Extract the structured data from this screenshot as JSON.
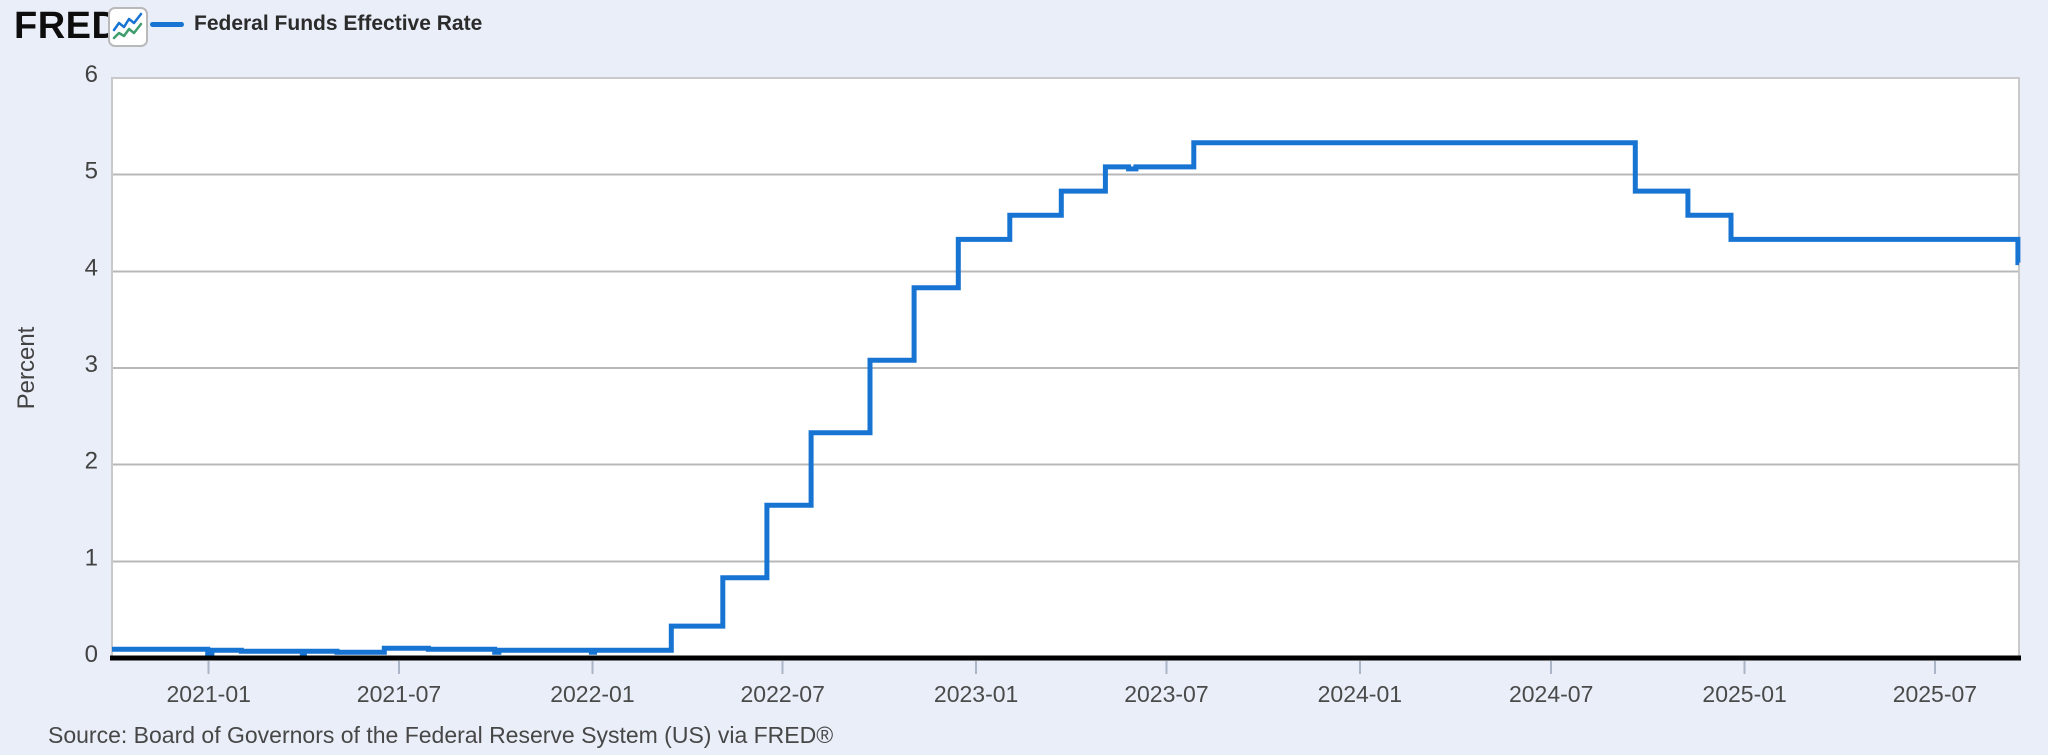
{
  "header": {
    "logo_text": "FRED",
    "logo_registered": "®",
    "logo_icon": "fred-sparkline-icon",
    "legend": {
      "label": "Federal Funds Effective Rate",
      "swatch_color": "#1874d2"
    }
  },
  "colors": {
    "background": "#e9eef8",
    "plot_background": "#ffffff",
    "grid": "#b8b8b8",
    "plot_border": "#c9c9c9",
    "axis_line": "#000000",
    "tick": "#aab6c8",
    "label_text": "#424242",
    "x_label_text": "#4a4a4a",
    "line": "#1874d2",
    "icon_blue": "#1874d2",
    "icon_green": "#3e9e6e"
  },
  "chart_data": {
    "type": "line",
    "line_style": "step-after",
    "title": "Federal Funds Effective Rate",
    "xlabel": "",
    "ylabel": "Percent",
    "ylim": [
      0,
      6
    ],
    "y_ticks": [
      0,
      1,
      2,
      3,
      4,
      5,
      6
    ],
    "grid": true,
    "legend_position": "top-left",
    "x_domain": [
      "2020-10-01",
      "2025-09-19"
    ],
    "x_ticks": [
      {
        "label": "2021-01",
        "date": "2021-01-01"
      },
      {
        "label": "2021-07",
        "date": "2021-07-01"
      },
      {
        "label": "2022-01",
        "date": "2022-01-01"
      },
      {
        "label": "2022-07",
        "date": "2022-07-01"
      },
      {
        "label": "2023-01",
        "date": "2023-01-01"
      },
      {
        "label": "2023-07",
        "date": "2023-07-01"
      },
      {
        "label": "2024-01",
        "date": "2024-01-01"
      },
      {
        "label": "2024-07",
        "date": "2024-07-01"
      },
      {
        "label": "2025-01",
        "date": "2025-01-01"
      },
      {
        "label": "2025-07",
        "date": "2025-07-01"
      }
    ],
    "series": [
      {
        "name": "Federal Funds Effective Rate",
        "color": "#1874d2",
        "points": [
          [
            "2020-10-01",
            0.09
          ],
          [
            "2020-12-31",
            0.05
          ],
          [
            "2021-01-04",
            0.08
          ],
          [
            "2021-02-01",
            0.07
          ],
          [
            "2021-03-31",
            0.05
          ],
          [
            "2021-04-02",
            0.07
          ],
          [
            "2021-05-03",
            0.06
          ],
          [
            "2021-06-17",
            0.1
          ],
          [
            "2021-07-29",
            0.09
          ],
          [
            "2021-09-30",
            0.06
          ],
          [
            "2021-10-04",
            0.08
          ],
          [
            "2021-12-31",
            0.06
          ],
          [
            "2022-01-03",
            0.08
          ],
          [
            "2022-03-17",
            0.33
          ],
          [
            "2022-05-05",
            0.83
          ],
          [
            "2022-06-16",
            1.58
          ],
          [
            "2022-07-28",
            2.33
          ],
          [
            "2022-09-22",
            3.08
          ],
          [
            "2022-11-03",
            3.83
          ],
          [
            "2022-12-15",
            4.33
          ],
          [
            "2023-02-02",
            4.58
          ],
          [
            "2023-03-23",
            4.83
          ],
          [
            "2023-05-04",
            5.08
          ],
          [
            "2023-05-26",
            5.06
          ],
          [
            "2023-06-02",
            5.08
          ],
          [
            "2023-07-27",
            5.33
          ],
          [
            "2024-09-19",
            4.83
          ],
          [
            "2024-11-08",
            4.58
          ],
          [
            "2024-12-19",
            4.33
          ],
          [
            "2025-09-18",
            4.09
          ],
          [
            "2025-09-19",
            4.09
          ]
        ]
      }
    ]
  },
  "footer": {
    "source": "Source: Board of Governors of the Federal Reserve System (US) via FRED®"
  }
}
